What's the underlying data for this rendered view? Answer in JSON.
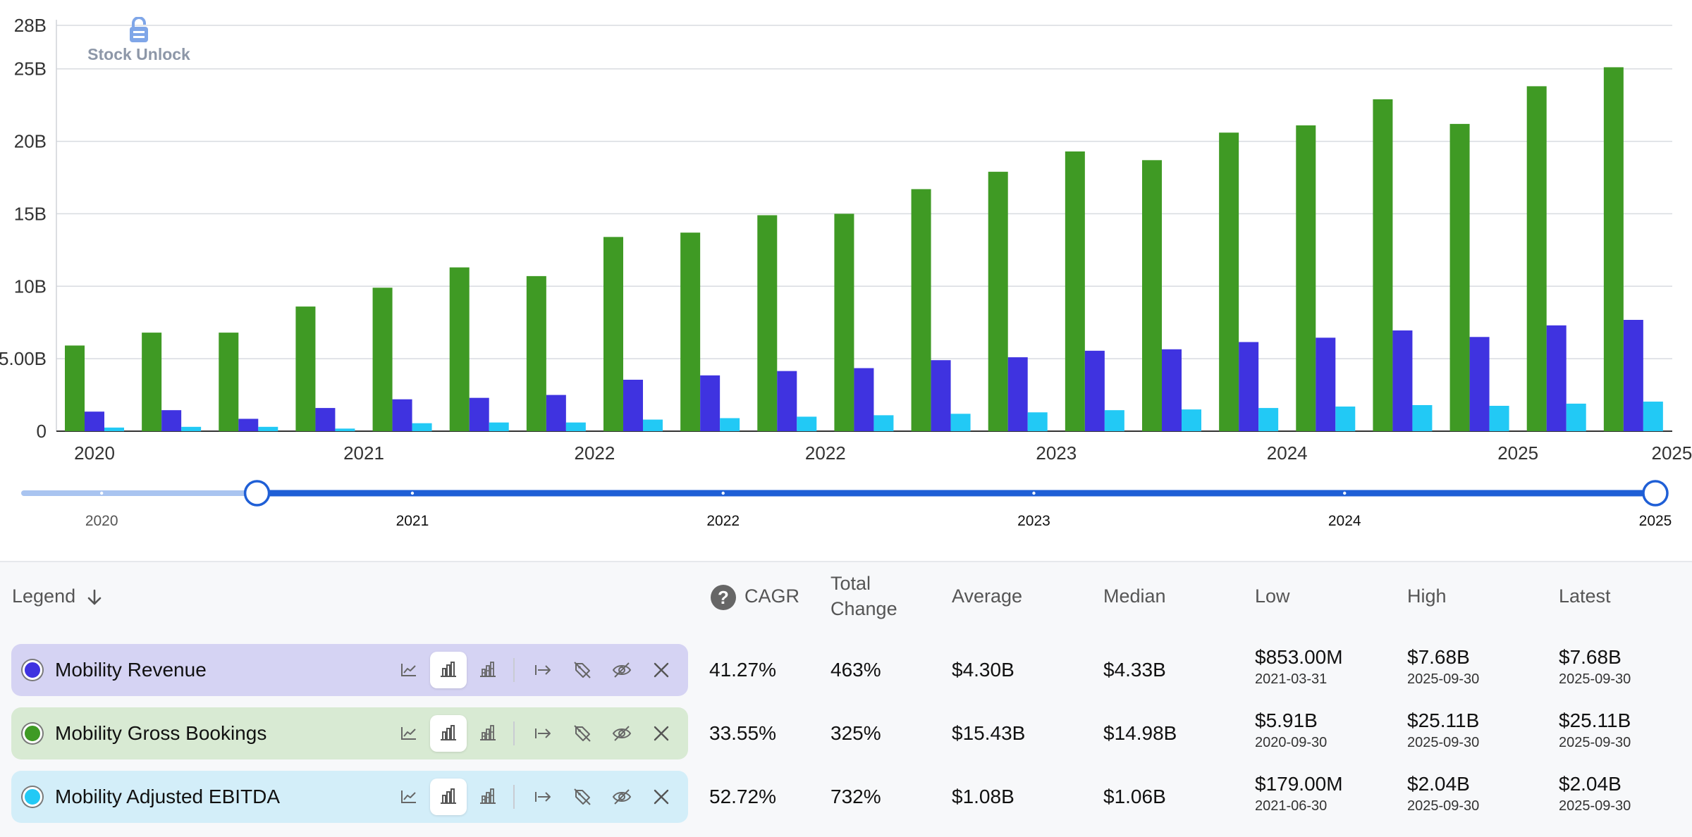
{
  "brand": {
    "name": "Stock Unlock",
    "icon": "lock-icon"
  },
  "chart_data": {
    "type": "bar",
    "y_ticks": [
      "0",
      "5.00B",
      "10B",
      "15B",
      "20B",
      "25B",
      "28B"
    ],
    "y_tick_values": [
      0,
      5,
      10,
      15,
      20,
      25,
      28
    ],
    "ylim": [
      0,
      28
    ],
    "y_unit": "B",
    "x_ticks": [
      "2020",
      "2021",
      "2022",
      "2022",
      "2023",
      "2024",
      "2025",
      "2025"
    ],
    "x_tick_at_bar": [
      0,
      3.5,
      6.5,
      9.5,
      12.5,
      15.5,
      18.5,
      20.5
    ],
    "legend_position": "bottom",
    "grid": true,
    "series": [
      {
        "name": "Mobility Gross Bookings",
        "color": "#3f9a24",
        "values": [
          5.91,
          6.8,
          6.8,
          8.6,
          9.9,
          11.3,
          10.7,
          13.4,
          13.7,
          14.9,
          15.0,
          16.7,
          17.9,
          19.3,
          18.7,
          20.6,
          21.1,
          22.9,
          21.2,
          23.8,
          25.11
        ]
      },
      {
        "name": "Mobility Revenue",
        "color": "#3f33e0",
        "values": [
          1.35,
          1.45,
          0.853,
          1.6,
          2.2,
          2.3,
          2.5,
          3.55,
          3.85,
          4.15,
          4.35,
          4.9,
          5.1,
          5.55,
          5.65,
          6.15,
          6.45,
          6.95,
          6.5,
          7.3,
          7.68
        ]
      },
      {
        "name": "Mobility Adjusted EBITDA",
        "color": "#22c9f5",
        "values": [
          0.25,
          0.3,
          0.3,
          0.179,
          0.55,
          0.6,
          0.6,
          0.8,
          0.9,
          1.0,
          1.1,
          1.2,
          1.3,
          1.45,
          1.5,
          1.6,
          1.7,
          1.8,
          1.75,
          1.9,
          2.04
        ]
      }
    ]
  },
  "range_slider": {
    "labels": [
      "2020",
      "2021",
      "2022",
      "2023",
      "2024",
      "2025"
    ],
    "years": [
      2020,
      2021,
      2022,
      2023,
      2024,
      2025
    ],
    "domain": [
      2019.75,
      2025.0
    ],
    "selection": [
      2020.5,
      2025.0
    ]
  },
  "legend": {
    "header": "Legend",
    "sort_icon": "arrow-down-icon",
    "columns": {
      "help": "?",
      "cagr": "CAGR",
      "total_change_line1": "Total",
      "total_change_line2": "Change",
      "average": "Average",
      "median": "Median",
      "low": "Low",
      "high": "High",
      "latest": "Latest"
    },
    "rows": [
      {
        "label": "Mobility Revenue",
        "color": "#3f33e0",
        "bg": "#d5d3f3",
        "cagr": "41.27%",
        "total_change": "463%",
        "average": "$4.30B",
        "median": "$4.33B",
        "low": "$853.00M",
        "low_date": "2021-03-31",
        "high": "$7.68B",
        "high_date": "2025-09-30",
        "latest": "$7.68B",
        "latest_date": "2025-09-30"
      },
      {
        "label": "Mobility Gross Bookings",
        "color": "#3f9a24",
        "bg": "#d8ead3",
        "cagr": "33.55%",
        "total_change": "325%",
        "average": "$15.43B",
        "median": "$14.98B",
        "low": "$5.91B",
        "low_date": "2020-09-30",
        "high": "$25.11B",
        "high_date": "2025-09-30",
        "latest": "$25.11B",
        "latest_date": "2025-09-30"
      },
      {
        "label": "Mobility Adjusted EBITDA",
        "color": "#22c9f5",
        "bg": "#d3eef9",
        "cagr": "52.72%",
        "total_change": "732%",
        "average": "$1.08B",
        "median": "$1.06B",
        "low": "$179.00M",
        "low_date": "2021-06-30",
        "high": "$2.04B",
        "high_date": "2025-09-30",
        "latest": "$2.04B",
        "latest_date": "2025-09-30"
      }
    ],
    "row_tools": [
      "line-chart-icon",
      "bar-chart-icon",
      "stacked-bar-icon",
      "extend-arrow-icon",
      "tag-off-icon",
      "eye-off-icon",
      "close-icon"
    ]
  }
}
